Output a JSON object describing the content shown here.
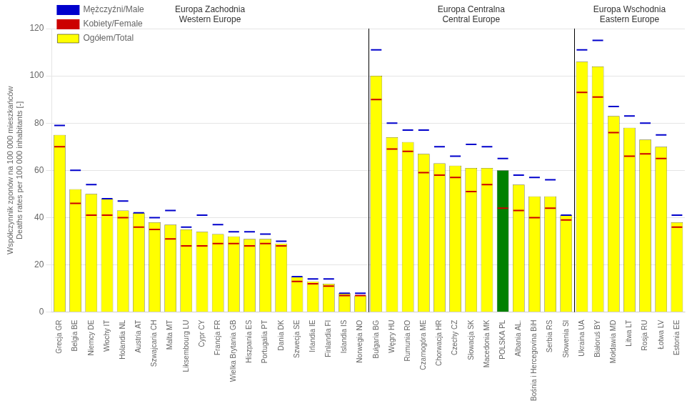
{
  "chart_data": {
    "type": "bar",
    "categories": [
      "Grecja GR",
      "Belgia BE",
      "Niemcy DE",
      "Włochy IT",
      "Holandia NL",
      "Austria AT",
      "Szwajcaria CH",
      "Malta MT",
      "Liksembourg LU",
      "Cypr CY",
      "Francja FR",
      "Wielka Brytania GB",
      "Hiszpania ES",
      "Portugalia PT",
      "Dania DK",
      "Szwecja SE",
      "Irlandia IE",
      "Finlandia FI",
      "Islandia IS",
      "Norwegia NO",
      "Bułgaria BG",
      "Węgry HU",
      "Rumunia RO",
      "Czarnogóra ME",
      "Chorwacja HR",
      "Czechy CZ",
      "Słowacja SK",
      "Macedonia MK",
      "POLSKA PL",
      "Albania AL.",
      "Bośnia i Hercegovina BiH",
      "Serbia RS",
      "Słowenia SI",
      "Ukraina UA",
      "Białoruś BY",
      "Mołdawia MD",
      "Litwa LT",
      "Rosja RU",
      "Łotwa LV",
      "Estonia EE"
    ],
    "series": [
      {
        "name": "Ogółem/Total",
        "type": "bar",
        "color": "#FFFF00",
        "colors": [
          "#FFFF00",
          "#FFFF00",
          "#FFFF00",
          "#FFFF00",
          "#FFFF00",
          "#FFFF00",
          "#FFFF00",
          "#FFFF00",
          "#FFFF00",
          "#FFFF00",
          "#FFFF00",
          "#FFFF00",
          "#FFFF00",
          "#FFFF00",
          "#FFFF00",
          "#FFFF00",
          "#FFFF00",
          "#FFFF00",
          "#FFFF00",
          "#FFFF00",
          "#FFFF00",
          "#FFFF00",
          "#FFFF00",
          "#FFFF00",
          "#FFFF00",
          "#FFFF00",
          "#FFFF00",
          "#FFFF00",
          "#008000",
          "#FFFF00",
          "#FFFF00",
          "#FFFF00",
          "#FFFF00",
          "#FFFF00",
          "#FFFF00",
          "#FFFF00",
          "#FFFF00",
          "#FFFF00",
          "#FFFF00",
          "#FFFF00"
        ],
        "values": [
          75,
          52,
          50,
          48,
          43,
          42,
          38,
          37,
          35,
          34,
          33,
          32,
          31,
          31,
          29,
          15,
          13,
          12,
          8,
          7,
          100,
          74,
          72,
          67,
          63,
          62,
          61,
          61,
          60,
          54,
          49,
          49,
          41,
          106,
          104,
          83,
          78,
          73,
          70,
          38
        ]
      },
      {
        "name": "Mężczyźni/Male",
        "type": "line",
        "marker": "dash",
        "line_style": "none",
        "color": "#0000CC",
        "values": [
          79,
          60,
          54,
          48,
          47,
          42,
          40,
          43,
          36,
          41,
          37,
          34,
          34,
          33,
          30,
          15,
          14,
          14,
          8,
          8,
          111,
          80,
          77,
          77,
          70,
          66,
          71,
          70,
          65,
          58,
          57,
          56,
          41,
          111,
          115,
          87,
          83,
          80,
          75,
          41
        ]
      },
      {
        "name": "Kobiety/Female",
        "type": "line",
        "marker": "dash",
        "line_style": "none",
        "color": "#CC0000",
        "values": [
          70,
          46,
          41,
          41,
          40,
          36,
          35,
          31,
          28,
          28,
          29,
          29,
          28,
          29,
          28,
          13,
          12,
          11,
          7,
          7,
          90,
          69,
          68,
          59,
          58,
          57,
          51,
          54,
          44,
          43,
          40,
          44,
          39,
          93,
          91,
          76,
          66,
          67,
          65,
          36
        ]
      }
    ],
    "ylabel": "Współczynnik zgonów na 100 000 mieszkańców\nDeaths rates per 100 000 inhabitants [-]",
    "ylim": [
      0,
      120
    ],
    "yticks": [
      0,
      20,
      40,
      60,
      80,
      100,
      120
    ],
    "grid": true,
    "legend": "upper left",
    "annotations": [
      {
        "text": "Europa Zachodnia\nWestern Europe",
        "start": "Grecja GR",
        "end": "Norwegia NO"
      },
      {
        "text": "Europa Centralna\nCentral Europe",
        "start": "Bułgaria BG",
        "end": "Słowenia SI"
      },
      {
        "text": "Europa Wschodnia\nEastern Europe",
        "start": "Ukraina UA",
        "end": "Estonia EE"
      }
    ]
  }
}
